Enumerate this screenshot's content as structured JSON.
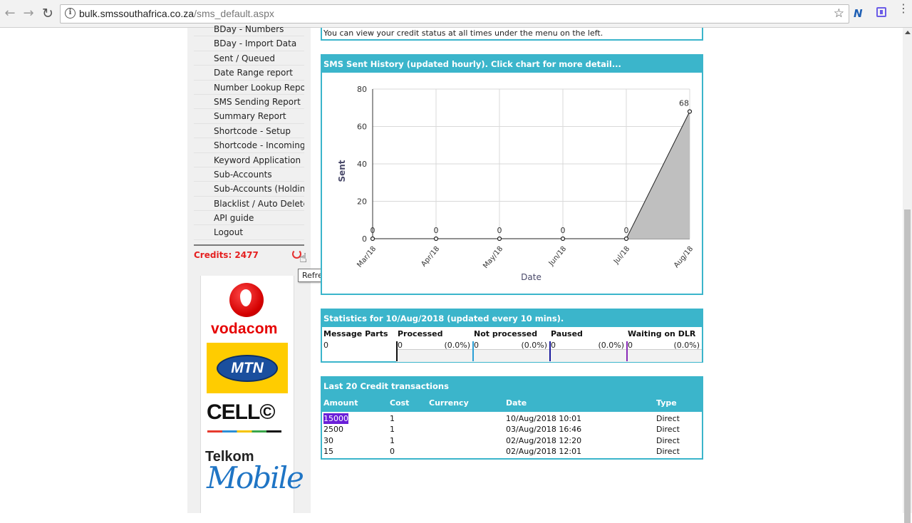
{
  "browser": {
    "url_host": "bulk.smssouthafrica.co.za",
    "url_path": "/sms_default.aspx"
  },
  "sidebar": {
    "items": [
      {
        "label": "BDay - Numbers"
      },
      {
        "label": "BDay - Import Data"
      },
      {
        "label": "Sent / Queued"
      },
      {
        "label": "Date Range report"
      },
      {
        "label": "Number Lookup Report"
      },
      {
        "label": "SMS Sending Report"
      },
      {
        "label": "Summary Report"
      },
      {
        "label": "Shortcode - Setup"
      },
      {
        "label": "Shortcode - Incoming"
      },
      {
        "label": "Keyword Application"
      },
      {
        "label": "Sub-Accounts"
      },
      {
        "label": "Sub-Accounts (Holding)"
      },
      {
        "label": "Blacklist / Auto Deleted"
      },
      {
        "label": "API guide"
      },
      {
        "label": "Logout"
      }
    ],
    "credits_text": "Credits: 2477",
    "refresh_tooltip": "Refresh credits"
  },
  "logos": {
    "vodacom": "vodacom",
    "mtn": "MTN",
    "cellc": "CELL©",
    "telkom": "Telkom",
    "telkom_mobile": "Mobile"
  },
  "notice": {
    "text": "You can view your credit status at all times under the menu on the left."
  },
  "history_panel": {
    "title": "SMS Sent History (updated hourly). Click chart for more detail..."
  },
  "chart_data": {
    "type": "area",
    "categories": [
      "Mar/18",
      "Apr/18",
      "May/18",
      "Jun/18",
      "Jul/18",
      "Aug/18"
    ],
    "values": [
      0,
      0,
      0,
      0,
      0,
      68
    ],
    "data_labels": [
      "0",
      "0",
      "0",
      "0",
      "0",
      "68"
    ],
    "xlabel": "Date",
    "ylabel": "Sent",
    "ylim": [
      0,
      80
    ],
    "yticks": [
      "0",
      "20",
      "40",
      "60",
      "80"
    ],
    "grid": true,
    "fill_color": "#bfbfbf"
  },
  "stats_panel": {
    "title": "Statistics for 10/Aug/2018 (updated every 10 mins).",
    "columns": [
      {
        "label": "Message Parts",
        "value": "0",
        "pct": "",
        "color": ""
      },
      {
        "label": "Processed",
        "value": "0",
        "pct": "(0.0%)",
        "color": "#111111"
      },
      {
        "label": "Not processed",
        "value": "0",
        "pct": "(0.0%)",
        "color": "#2b9fd6"
      },
      {
        "label": "Paused",
        "value": "0",
        "pct": "(0.0%)",
        "color": "#1a1a9e"
      },
      {
        "label": "Waiting on DLR",
        "value": "0",
        "pct": "(0.0%)",
        "color": "#8a2bb8"
      }
    ]
  },
  "transactions_panel": {
    "title": "Last 20 Credit transactions",
    "headers": {
      "amount": "Amount",
      "cost": "Cost",
      "currency": "Currency",
      "date": "Date",
      "type": "Type"
    },
    "rows": [
      {
        "amount": "15000",
        "cost": "1",
        "currency": "",
        "date": "10/Aug/2018 10:01",
        "type": "Direct"
      },
      {
        "amount": "2500",
        "cost": "1",
        "currency": "",
        "date": "03/Aug/2018 16:46",
        "type": "Direct"
      },
      {
        "amount": "30",
        "cost": "1",
        "currency": "",
        "date": "02/Aug/2018 12:20",
        "type": "Direct"
      },
      {
        "amount": "15",
        "cost": "0",
        "currency": "",
        "date": "02/Aug/2018 12:01",
        "type": "Direct"
      }
    ]
  },
  "colors": {
    "accent": "#3bb5cb",
    "credits": "#e52020",
    "highlight": "#6a1fd8"
  }
}
